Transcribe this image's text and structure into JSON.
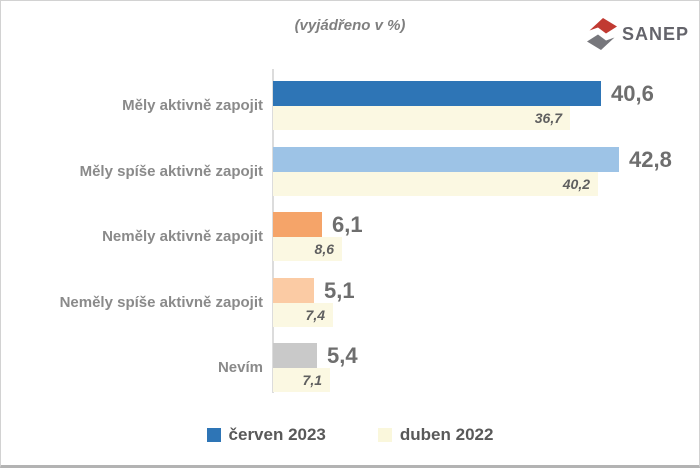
{
  "title": "(vyjádřeno v %)",
  "logo": {
    "text": "SANEP",
    "red": "#c13a32",
    "gray": "#77777c"
  },
  "legend": {
    "items": [
      {
        "label": "červen 2023",
        "color": "#2E75B6"
      },
      {
        "label": "duben 2022",
        "color": "#FAF7DC"
      }
    ]
  },
  "chart_data": {
    "type": "bar",
    "orientation": "horizontal",
    "title": "(vyjádřeno v %)",
    "unit": "%",
    "categories": [
      "Měly aktivně zapojit",
      "Měly spíše aktivně zapojit",
      "Neměly aktivně zapojit",
      "Neměly spíše aktivně zapojit",
      "Nevím"
    ],
    "series": [
      {
        "name": "červen 2023",
        "values": [
          40.6,
          42.8,
          6.1,
          5.1,
          5.4
        ],
        "display": [
          "40,6",
          "42,8",
          "6,1",
          "5,1",
          "5,4"
        ],
        "colors": [
          "#2E75B6",
          "#9DC3E6",
          "#F5A469",
          "#FBCBA4",
          "#C9C9C9"
        ]
      },
      {
        "name": "duben 2022",
        "values": [
          36.7,
          40.2,
          8.6,
          7.4,
          7.1
        ],
        "display": [
          "36,7",
          "40,2",
          "8,6",
          "7,4",
          "7,1"
        ],
        "color": "#FBF8E2"
      }
    ],
    "xlim": [
      0,
      45
    ],
    "grid": false,
    "legend_position": "bottom",
    "value_labels": "series1 outside bold, series2 inside italic"
  }
}
